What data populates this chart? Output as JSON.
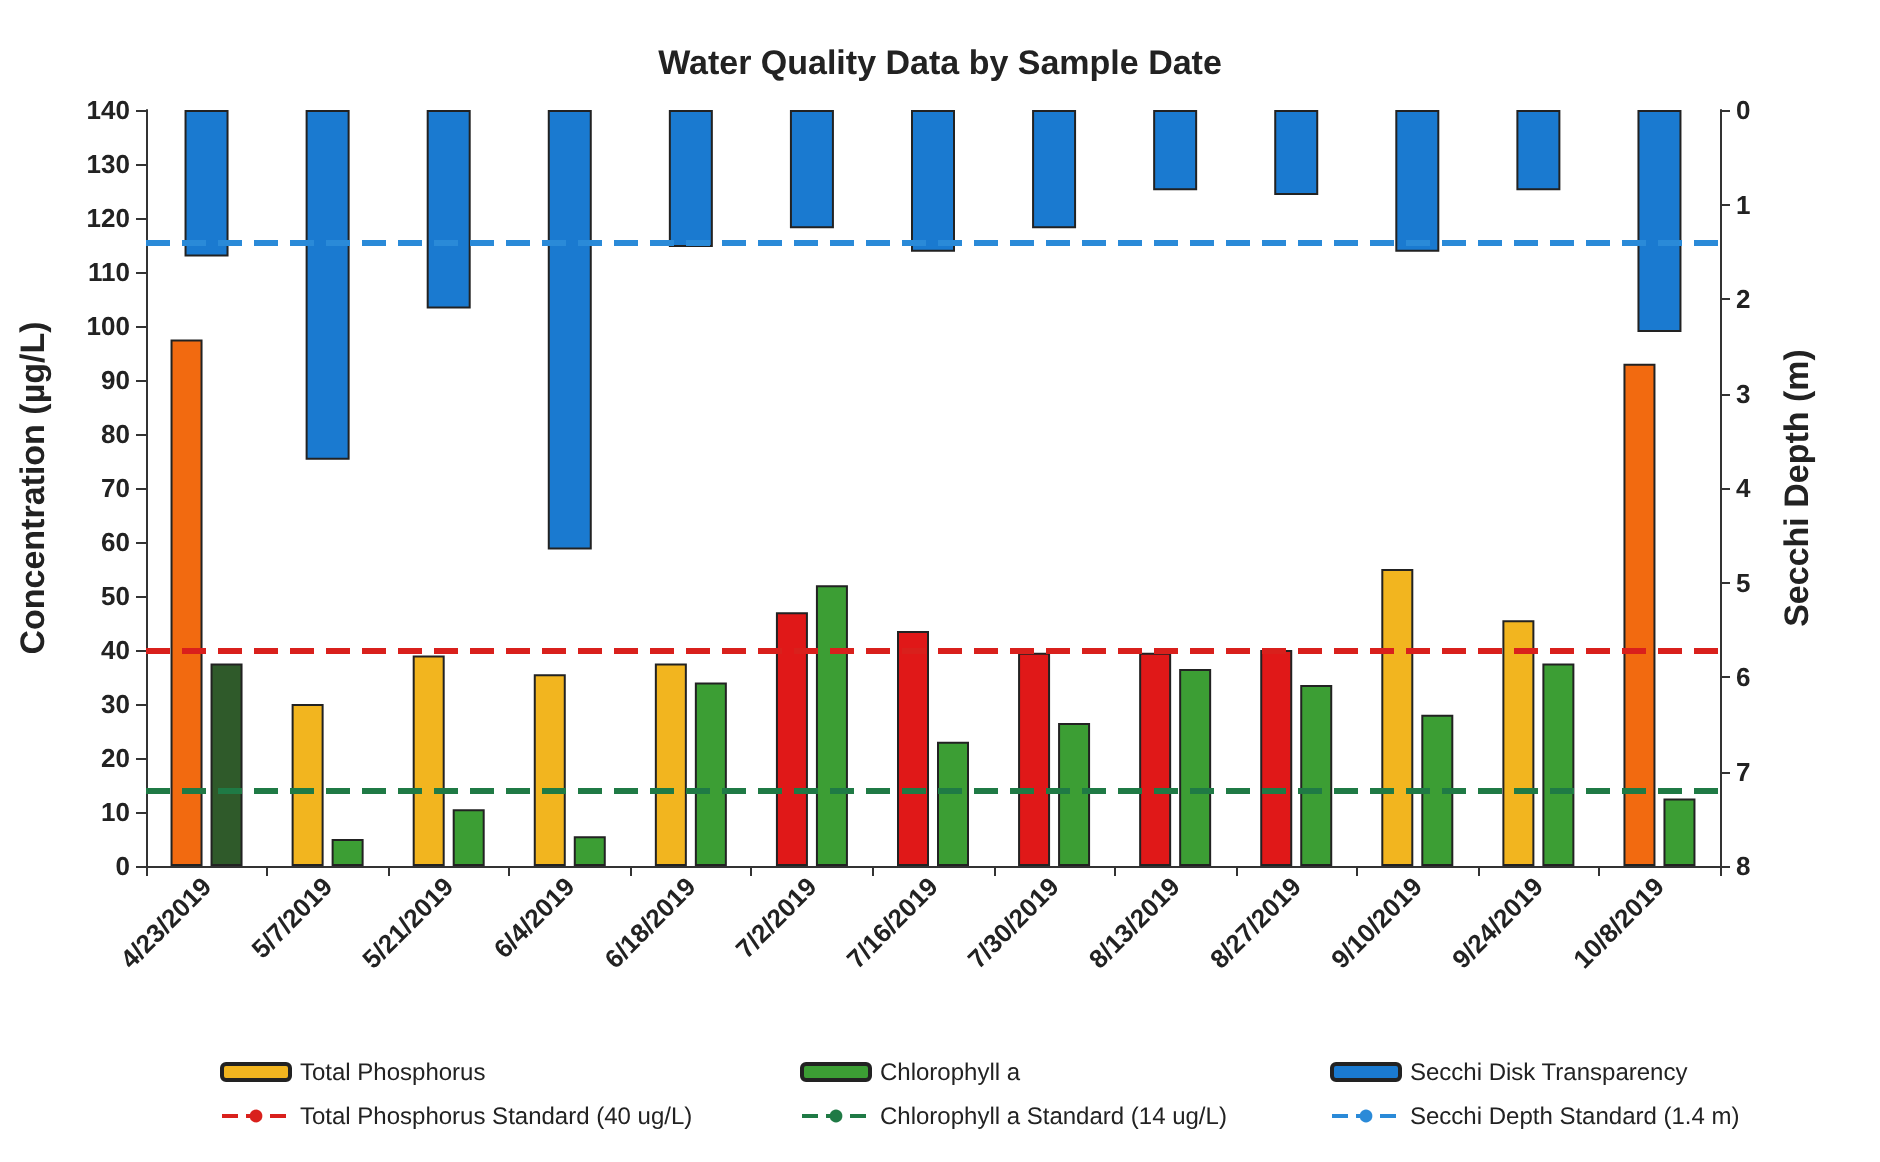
{
  "chart_data": {
    "type": "bar",
    "title": "Water Quality Data by Sample Date",
    "categories": [
      "4/23/2019",
      "5/7/2019",
      "5/21/2019",
      "6/4/2019",
      "6/18/2019",
      "7/2/2019",
      "7/16/2019",
      "7/30/2019",
      "8/13/2019",
      "8/27/2019",
      "9/10/2019",
      "9/24/2019",
      "10/8/2019"
    ],
    "series": [
      {
        "name": "Total Phosphorus",
        "color": "#f2b51f",
        "colors": [
          "#f26a10",
          "#f2b51f",
          "#f2b51f",
          "#f2b51f",
          "#f2b51f",
          "#e01818",
          "#e01818",
          "#e01818",
          "#e01818",
          "#e01818",
          "#f2b51f",
          "#f2b51f",
          "#f26a10"
        ],
        "values": [
          97.5,
          30,
          39,
          35.5,
          37.5,
          47,
          43.5,
          39.5,
          39.5,
          40,
          55,
          45.5,
          93
        ]
      },
      {
        "name": "Chlorophyll a",
        "color": "#3c9e34",
        "colors": [
          "#2f5a2a",
          "#3c9e34",
          "#3c9e34",
          "#3c9e34",
          "#3c9e34",
          "#3c9e34",
          "#3c9e34",
          "#3c9e34",
          "#3c9e34",
          "#3c9e34",
          "#3c9e34",
          "#3c9e34",
          "#3c9e34"
        ],
        "values": [
          37.5,
          5,
          10.5,
          5.5,
          34,
          52,
          23,
          26.5,
          36.5,
          33.5,
          28,
          37.5,
          12.5
        ]
      },
      {
        "name": "Secchi Disk Transparency",
        "color": "#1a7ad0",
        "axis": "y2",
        "values": [
          1.55,
          3.7,
          2.1,
          4.65,
          1.45,
          1.25,
          1.5,
          1.25,
          0.85,
          0.9,
          1.5,
          0.85,
          2.35
        ]
      }
    ],
    "ref_lines": [
      {
        "axis": "y",
        "value": 40,
        "label": "Total Phosphorus Standard (40 ug/L)",
        "color": "#d9201c",
        "line_style": "dashed"
      },
      {
        "axis": "y",
        "value": 14,
        "label": "Chlorophyll a Standard (14 ug/L)",
        "color": "#1f7a45",
        "line_style": "dashed"
      },
      {
        "axis": "y2",
        "value": 1.4,
        "label": "Secchi Depth Standard (1.4 m)",
        "color": "#2a8ad8",
        "line_style": "dashed"
      }
    ],
    "ylabel": "Concentration (µg/L)",
    "y2label": "Secchi Depth (m)",
    "ylim": [
      0,
      140
    ],
    "yticks": [
      0,
      10,
      20,
      30,
      40,
      50,
      60,
      70,
      80,
      90,
      100,
      110,
      120,
      130,
      140
    ],
    "y2lim": [
      8,
      0
    ],
    "y2ticks": [
      0,
      1,
      2,
      3,
      4,
      5,
      6,
      7,
      8
    ],
    "grid": false,
    "legend": "bottom"
  }
}
